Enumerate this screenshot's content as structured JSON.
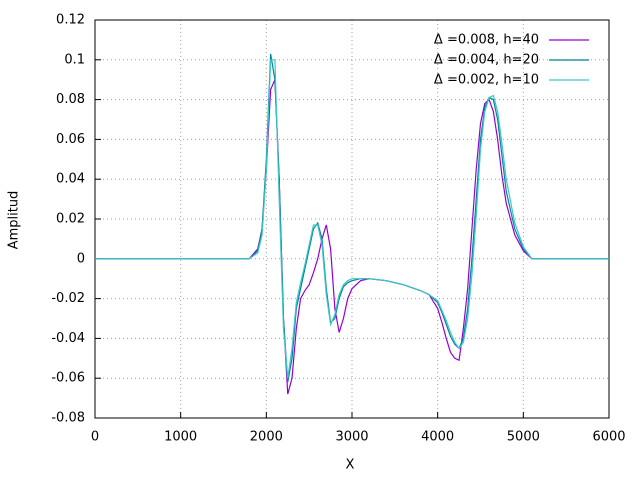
{
  "chart_data": {
    "type": "line",
    "xlabel": "X",
    "ylabel": "Amplitud",
    "x": [
      0,
      1700,
      1800,
      1900,
      1950,
      2000,
      2050,
      2100,
      2150,
      2200,
      2250,
      2300,
      2350,
      2400,
      2450,
      2500,
      2550,
      2600,
      2650,
      2700,
      2750,
      2800,
      2850,
      2900,
      2950,
      3000,
      3100,
      3200,
      3400,
      3600,
      3800,
      3900,
      4000,
      4050,
      4100,
      4150,
      4200,
      4250,
      4300,
      4350,
      4400,
      4450,
      4500,
      4550,
      4600,
      4650,
      4700,
      4750,
      4800,
      4900,
      5000,
      5100,
      6000
    ],
    "series": [
      {
        "name": "Δ =0.008, h=40",
        "color": "#9400d3",
        "values": [
          0,
          0,
          0,
          0.005,
          0.015,
          0.045,
          0.085,
          0.09,
          0.04,
          -0.03,
          -0.068,
          -0.06,
          -0.035,
          -0.02,
          -0.016,
          -0.013,
          -0.007,
          0,
          0.01,
          0.017,
          0.005,
          -0.025,
          -0.037,
          -0.03,
          -0.02,
          -0.015,
          -0.011,
          -0.01,
          -0.011,
          -0.013,
          -0.016,
          -0.018,
          -0.025,
          -0.032,
          -0.04,
          -0.047,
          -0.05,
          -0.051,
          -0.035,
          -0.015,
          0.015,
          0.045,
          0.068,
          0.078,
          0.08,
          0.074,
          0.06,
          0.042,
          0.028,
          0.012,
          0.004,
          0,
          0
        ]
      },
      {
        "name": "Δ =0.004, h=20",
        "color": "#00839b",
        "values": [
          0,
          0,
          0,
          0.004,
          0.015,
          0.05,
          0.103,
          0.09,
          0.04,
          -0.03,
          -0.062,
          -0.05,
          -0.025,
          -0.015,
          -0.005,
          0.005,
          0.015,
          0.018,
          0.01,
          -0.015,
          -0.032,
          -0.03,
          -0.02,
          -0.014,
          -0.012,
          -0.011,
          -0.01,
          -0.01,
          -0.011,
          -0.013,
          -0.016,
          -0.018,
          -0.022,
          -0.027,
          -0.033,
          -0.039,
          -0.043,
          -0.045,
          -0.04,
          -0.025,
          0,
          0.03,
          0.06,
          0.076,
          0.081,
          0.08,
          0.07,
          0.052,
          0.034,
          0.015,
          0.005,
          0,
          0
        ]
      },
      {
        "name": "Δ =0.002, h=10",
        "color": "#3cc6c6",
        "values": [
          0,
          0,
          0,
          0.003,
          0.012,
          0.045,
          0.1,
          0.1,
          0.03,
          -0.035,
          -0.06,
          -0.045,
          -0.022,
          -0.012,
          -0.003,
          0.007,
          0.017,
          0.017,
          0.007,
          -0.018,
          -0.033,
          -0.028,
          -0.018,
          -0.013,
          -0.011,
          -0.01,
          -0.01,
          -0.01,
          -0.011,
          -0.013,
          -0.016,
          -0.018,
          -0.021,
          -0.026,
          -0.031,
          -0.037,
          -0.042,
          -0.045,
          -0.042,
          -0.03,
          -0.008,
          0.022,
          0.055,
          0.074,
          0.081,
          0.082,
          0.074,
          0.058,
          0.04,
          0.018,
          0.006,
          0,
          0
        ]
      }
    ],
    "xlim": [
      0,
      6000
    ],
    "xticks": [
      0,
      1000,
      2000,
      3000,
      4000,
      5000,
      6000
    ],
    "ylim": [
      -0.08,
      0.12
    ],
    "yticks": [
      -0.08,
      -0.06,
      -0.04,
      -0.02,
      0,
      0.02,
      0.04,
      0.06,
      0.08,
      0.1,
      0.12
    ],
    "grid": true,
    "legend": "top-right"
  }
}
